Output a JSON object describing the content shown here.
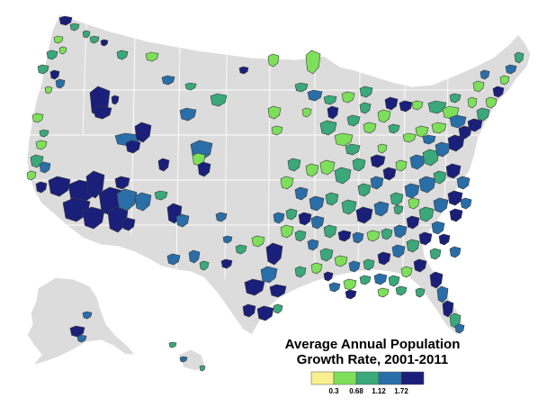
{
  "map": {
    "region": "United States",
    "land_color": "#dcdcdc",
    "border_color": "#ffffff",
    "marker_outline": "#3a3a3a"
  },
  "legend": {
    "title_line_1": "Average Annual Population",
    "title_line_2": "Growth Rate, 2001-2011",
    "ticks": [
      "0.3",
      "0.68",
      "1.12",
      "1.72"
    ],
    "colors": [
      "#f7f08c",
      "#7ee05a",
      "#3aa87a",
      "#2a6ea8",
      "#1a1f7a"
    ]
  }
}
